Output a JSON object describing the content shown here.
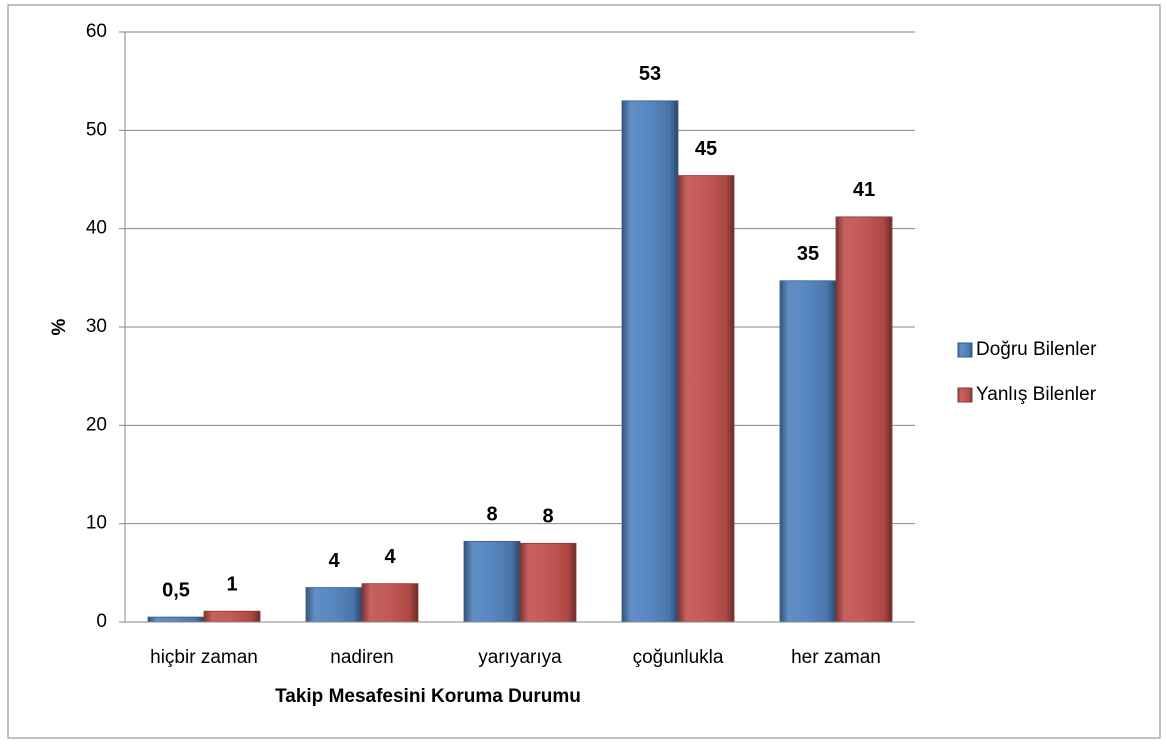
{
  "chart_data": {
    "type": "bar",
    "x_label": "Takip Mesafesini Koruma Durumu",
    "y_label": "%",
    "categories": [
      "hiçbir zaman",
      "nadiren",
      "yarıyarıya",
      "çoğunlukla",
      "her zaman"
    ],
    "series": [
      {
        "name": "Doğru Bilenler",
        "color": "#4f81bd",
        "values": [
          0.5,
          3.5,
          8.2,
          53,
          34.7
        ],
        "value_labels": [
          "0,5",
          "4",
          "8",
          "53",
          "35"
        ]
      },
      {
        "name": "Yanlış Bilenler",
        "color": "#c0504d",
        "values": [
          1.1,
          3.9,
          8,
          45.4,
          41.2
        ],
        "value_labels": [
          "1",
          "4",
          "8",
          "45",
          "41"
        ]
      }
    ],
    "ylim": [
      0,
      60
    ],
    "yticks": [
      0,
      10,
      20,
      30,
      40,
      50,
      60
    ],
    "grid": true,
    "legend": "right"
  }
}
